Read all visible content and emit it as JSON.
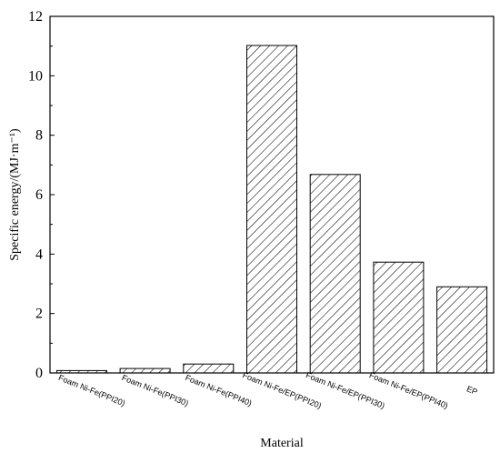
{
  "chart_data": {
    "type": "bar",
    "title": "",
    "xlabel": "Material",
    "ylabel": "Specific energy/(MJ·m⁻¹)",
    "categories": [
      "Foam Ni-Fe(PPI20)",
      "Foam Ni-Fe(PPI30)",
      "Foam Ni-Fe(PPI40)",
      "Foam Ni-Fe/EP(PPI20)",
      "Foam Ni-Fe/EP(PPI30)",
      "Foam Ni-Fe/EP(PPI40)",
      "EP"
    ],
    "values": [
      0.08,
      0.15,
      0.3,
      11.02,
      6.68,
      3.73,
      2.9
    ],
    "ylim": [
      0,
      12
    ],
    "yticks": [
      0,
      2,
      4,
      6,
      8,
      10,
      12
    ],
    "ytick_labels": [
      "0",
      "2",
      "4",
      "6",
      "8",
      "10",
      "12"
    ],
    "grid": false,
    "bar_fill": "hatched",
    "bar_color": "#000000"
  }
}
